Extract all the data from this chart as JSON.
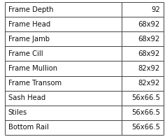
{
  "rows": [
    [
      "Frame Depth",
      "92"
    ],
    [
      "Frame Head",
      "68x92"
    ],
    [
      "Frame Jamb",
      "68x92"
    ],
    [
      "Frame Cill",
      "68x92"
    ],
    [
      "Frame Mullion",
      "82x92"
    ],
    [
      "Frame Transom",
      "82x92"
    ],
    [
      "Sash Head",
      "56x66.5"
    ],
    [
      "Stiles",
      "56x66.5"
    ],
    [
      "Bottom Rail",
      "56x66.5"
    ]
  ],
  "col_split": 0.735,
  "background_color": "#ffffff",
  "border_color": "#444444",
  "text_color": "#111111",
  "font_size": 7.2,
  "fig_width": 2.36,
  "fig_height": 1.96,
  "dpi": 100
}
